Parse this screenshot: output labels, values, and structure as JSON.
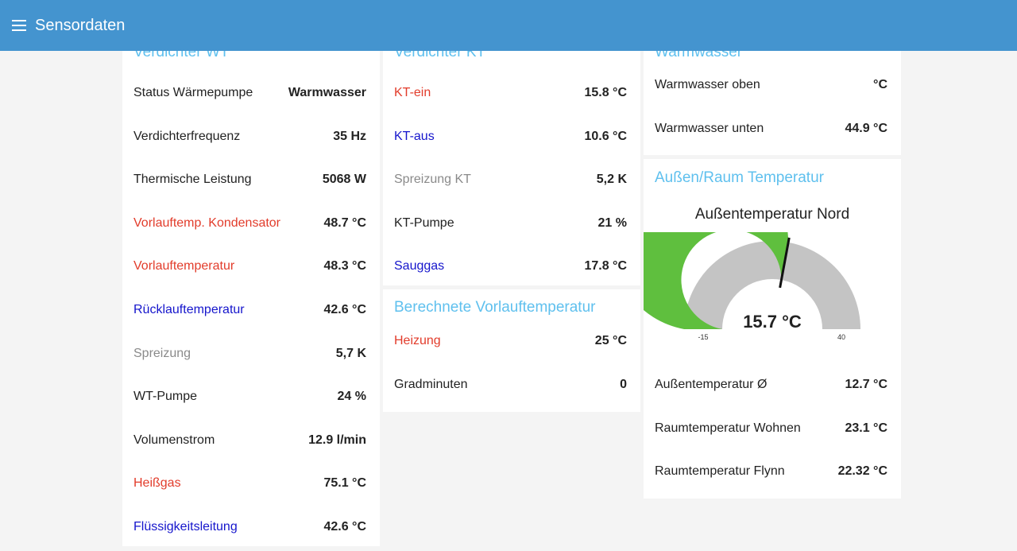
{
  "appbar": {
    "title": "Sensordaten",
    "menu_icon": "menu-icon",
    "color": "#4494cf"
  },
  "card1": {
    "title": "Verdichter WT",
    "rows": [
      {
        "label": "Status Wärmepumpe",
        "value": "Warmwasser",
        "color": "default"
      },
      {
        "label": "Verdichterfrequenz",
        "value": "35 Hz",
        "color": "default"
      },
      {
        "label": "Thermische Leistung",
        "value": "5068 W",
        "color": "default"
      },
      {
        "label": "Vorlauftemp. Kondensator",
        "value": "48.7 °C",
        "color": "red"
      },
      {
        "label": "Vorlauftemperatur",
        "value": "48.3 °C",
        "color": "red"
      },
      {
        "label": "Rücklauftemperatur",
        "value": "42.6 °C",
        "color": "blue"
      },
      {
        "label": "Spreizung",
        "value": "5,7 K",
        "color": "gray"
      },
      {
        "label": "WT-Pumpe",
        "value": "24 %",
        "color": "default"
      },
      {
        "label": "Volumenstrom",
        "value": "12.9 l/min",
        "color": "default"
      },
      {
        "label": "Heißgas",
        "value": "75.1 °C",
        "color": "red"
      },
      {
        "label": "Flüssigkeitsleitung",
        "value": "42.6 °C",
        "color": "blue"
      }
    ]
  },
  "card2": {
    "title": "Verdichter KT",
    "rows": [
      {
        "label": "KT-ein",
        "value": "15.8 °C",
        "color": "red"
      },
      {
        "label": "KT-aus",
        "value": "10.6 °C",
        "color": "blue"
      },
      {
        "label": "Spreizung KT",
        "value": "5,2 K",
        "color": "gray"
      },
      {
        "label": "KT-Pumpe",
        "value": "21 %",
        "color": "default"
      },
      {
        "label": "Sauggas",
        "value": "17.8 °C",
        "color": "blue"
      }
    ]
  },
  "card3": {
    "title": "Berechnete Vorlauftemperatur",
    "rows": [
      {
        "label": "Heizung",
        "value": "25 °C",
        "color": "red"
      },
      {
        "label": "Gradminuten",
        "value": "0",
        "color": "default"
      }
    ]
  },
  "card4": {
    "title": "Warmwasser",
    "rows": [
      {
        "label": "Warmwasser oben",
        "value": "°C",
        "color": "default"
      },
      {
        "label": "Warmwasser unten",
        "value": "44.9 °C",
        "color": "default"
      }
    ]
  },
  "card5": {
    "title": "Außen/Raum Temperatur",
    "gauge": {
      "title": "Außentemperatur Nord",
      "value": 15.7,
      "value_text": "15.7 °C",
      "min": -15,
      "max": 40,
      "min_label": "-15",
      "max_label": "40",
      "fill_color": "#5fbf3e",
      "track_color": "#c4c4c4"
    },
    "rows": [
      {
        "label": "Außentemperatur Ø",
        "value": "12.7 °C",
        "color": "default"
      },
      {
        "label": "Raumtemperatur Wohnen",
        "value": "23.1 °C",
        "color": "default"
      },
      {
        "label": "Raumtemperatur Flynn",
        "value": "22.32 °C",
        "color": "default"
      }
    ]
  }
}
